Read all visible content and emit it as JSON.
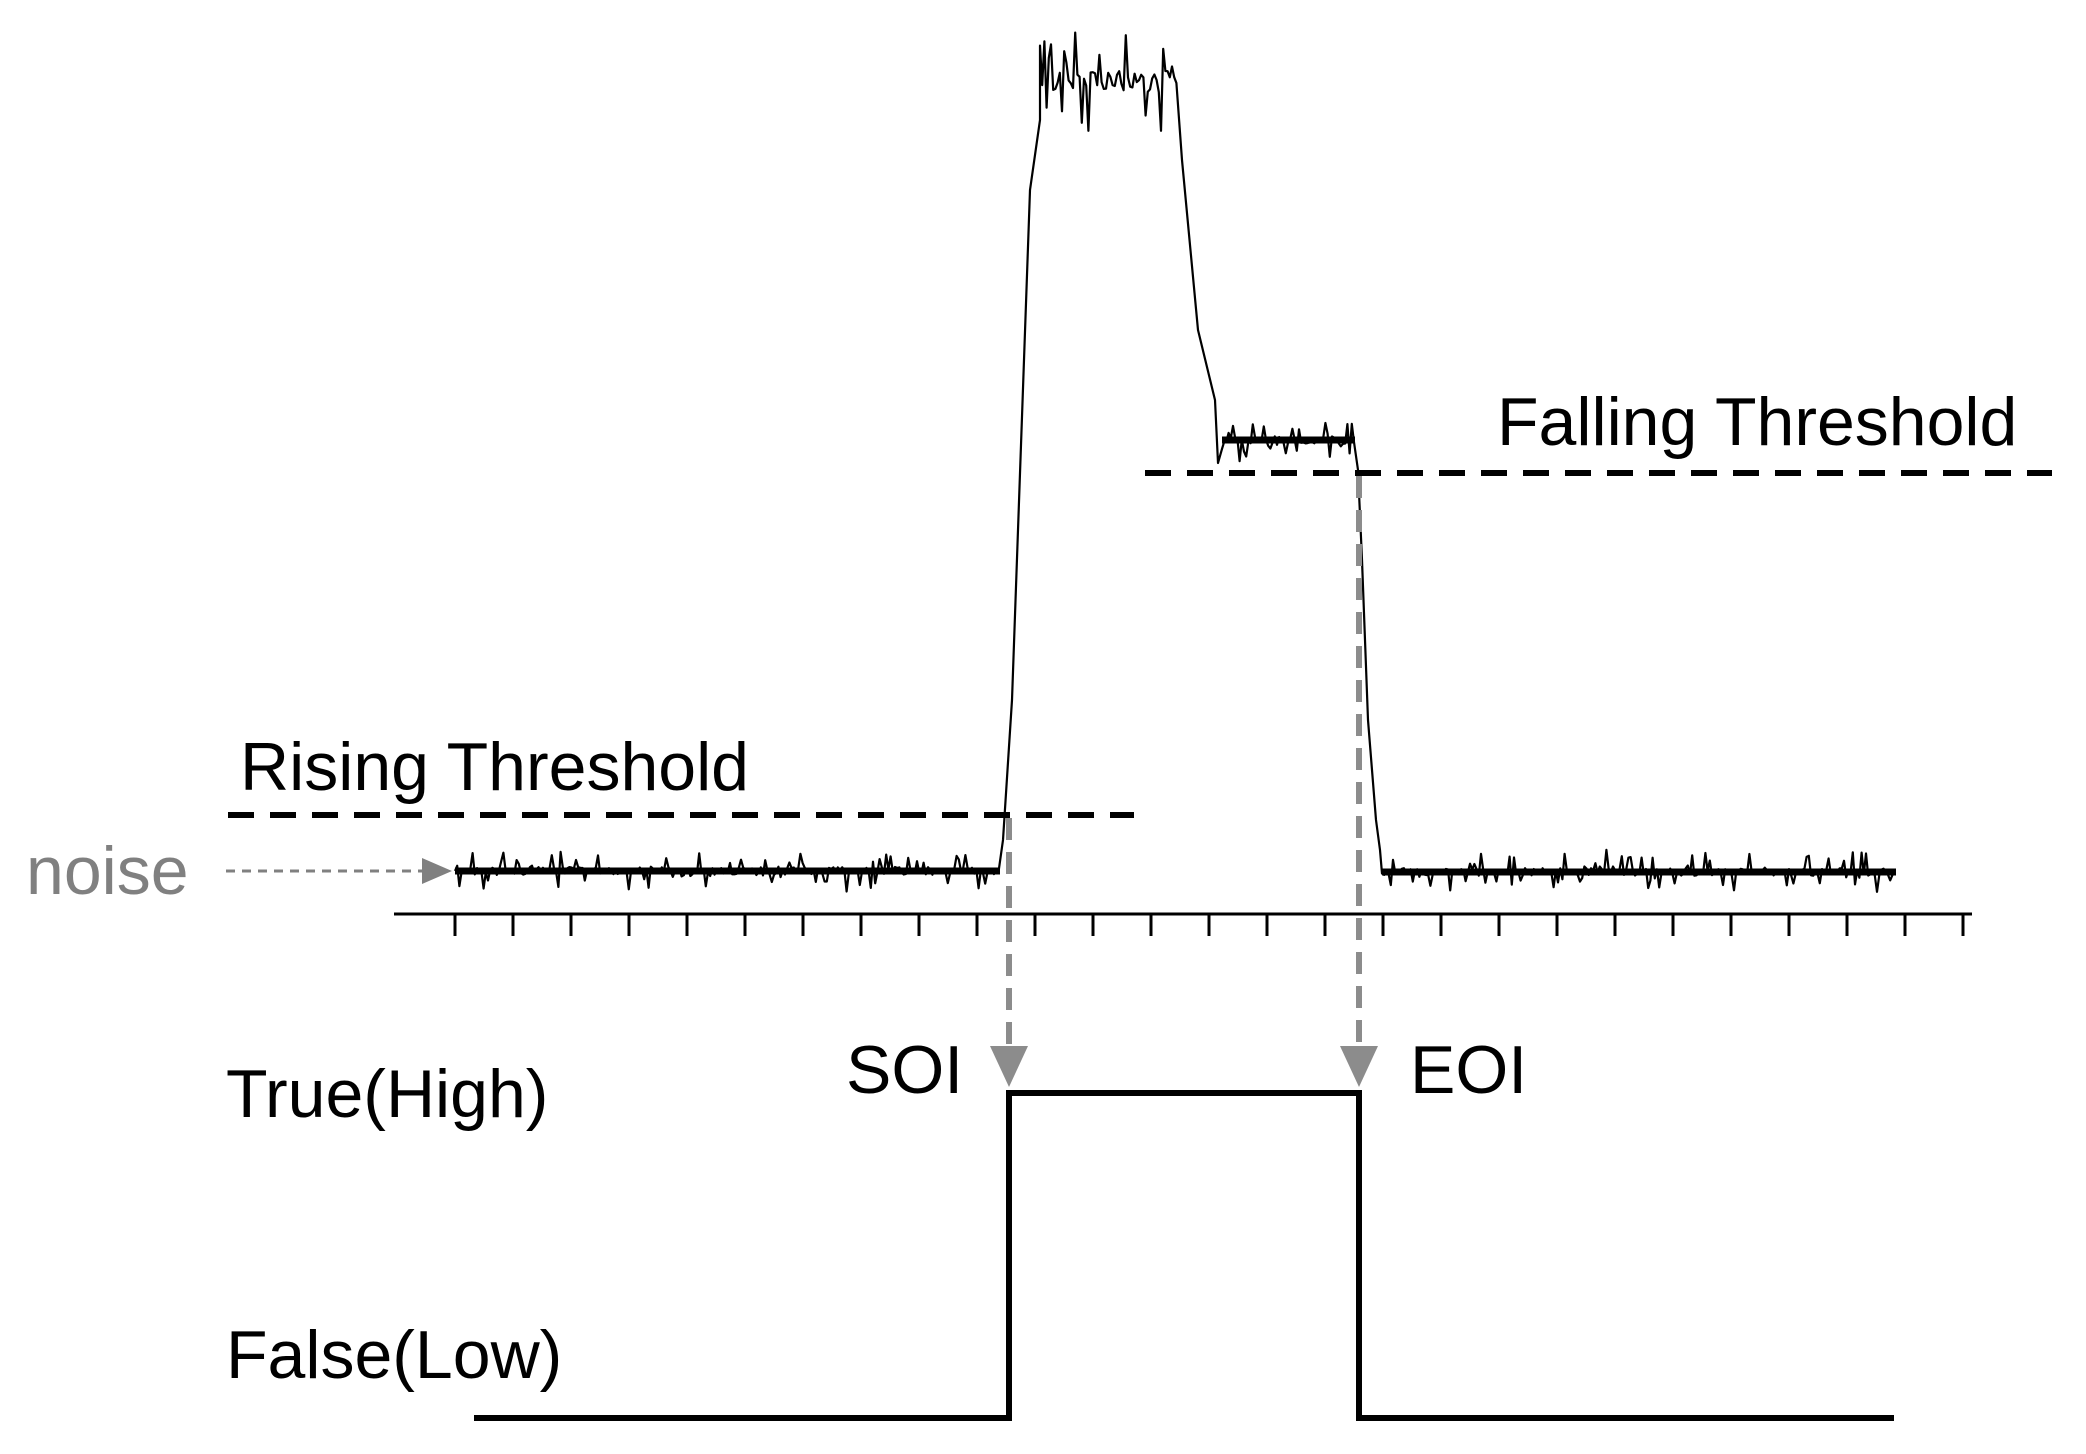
{
  "labels": {
    "falling_threshold": "Falling Threshold",
    "rising_threshold": "Rising Threshold",
    "noise": "noise",
    "soi": "SOI",
    "eoi": "EOI",
    "true_high": "True(High)",
    "false_low": "False(Low)"
  },
  "colors": {
    "line": "#000000",
    "annotation": "#808080",
    "background": "#ffffff"
  }
}
